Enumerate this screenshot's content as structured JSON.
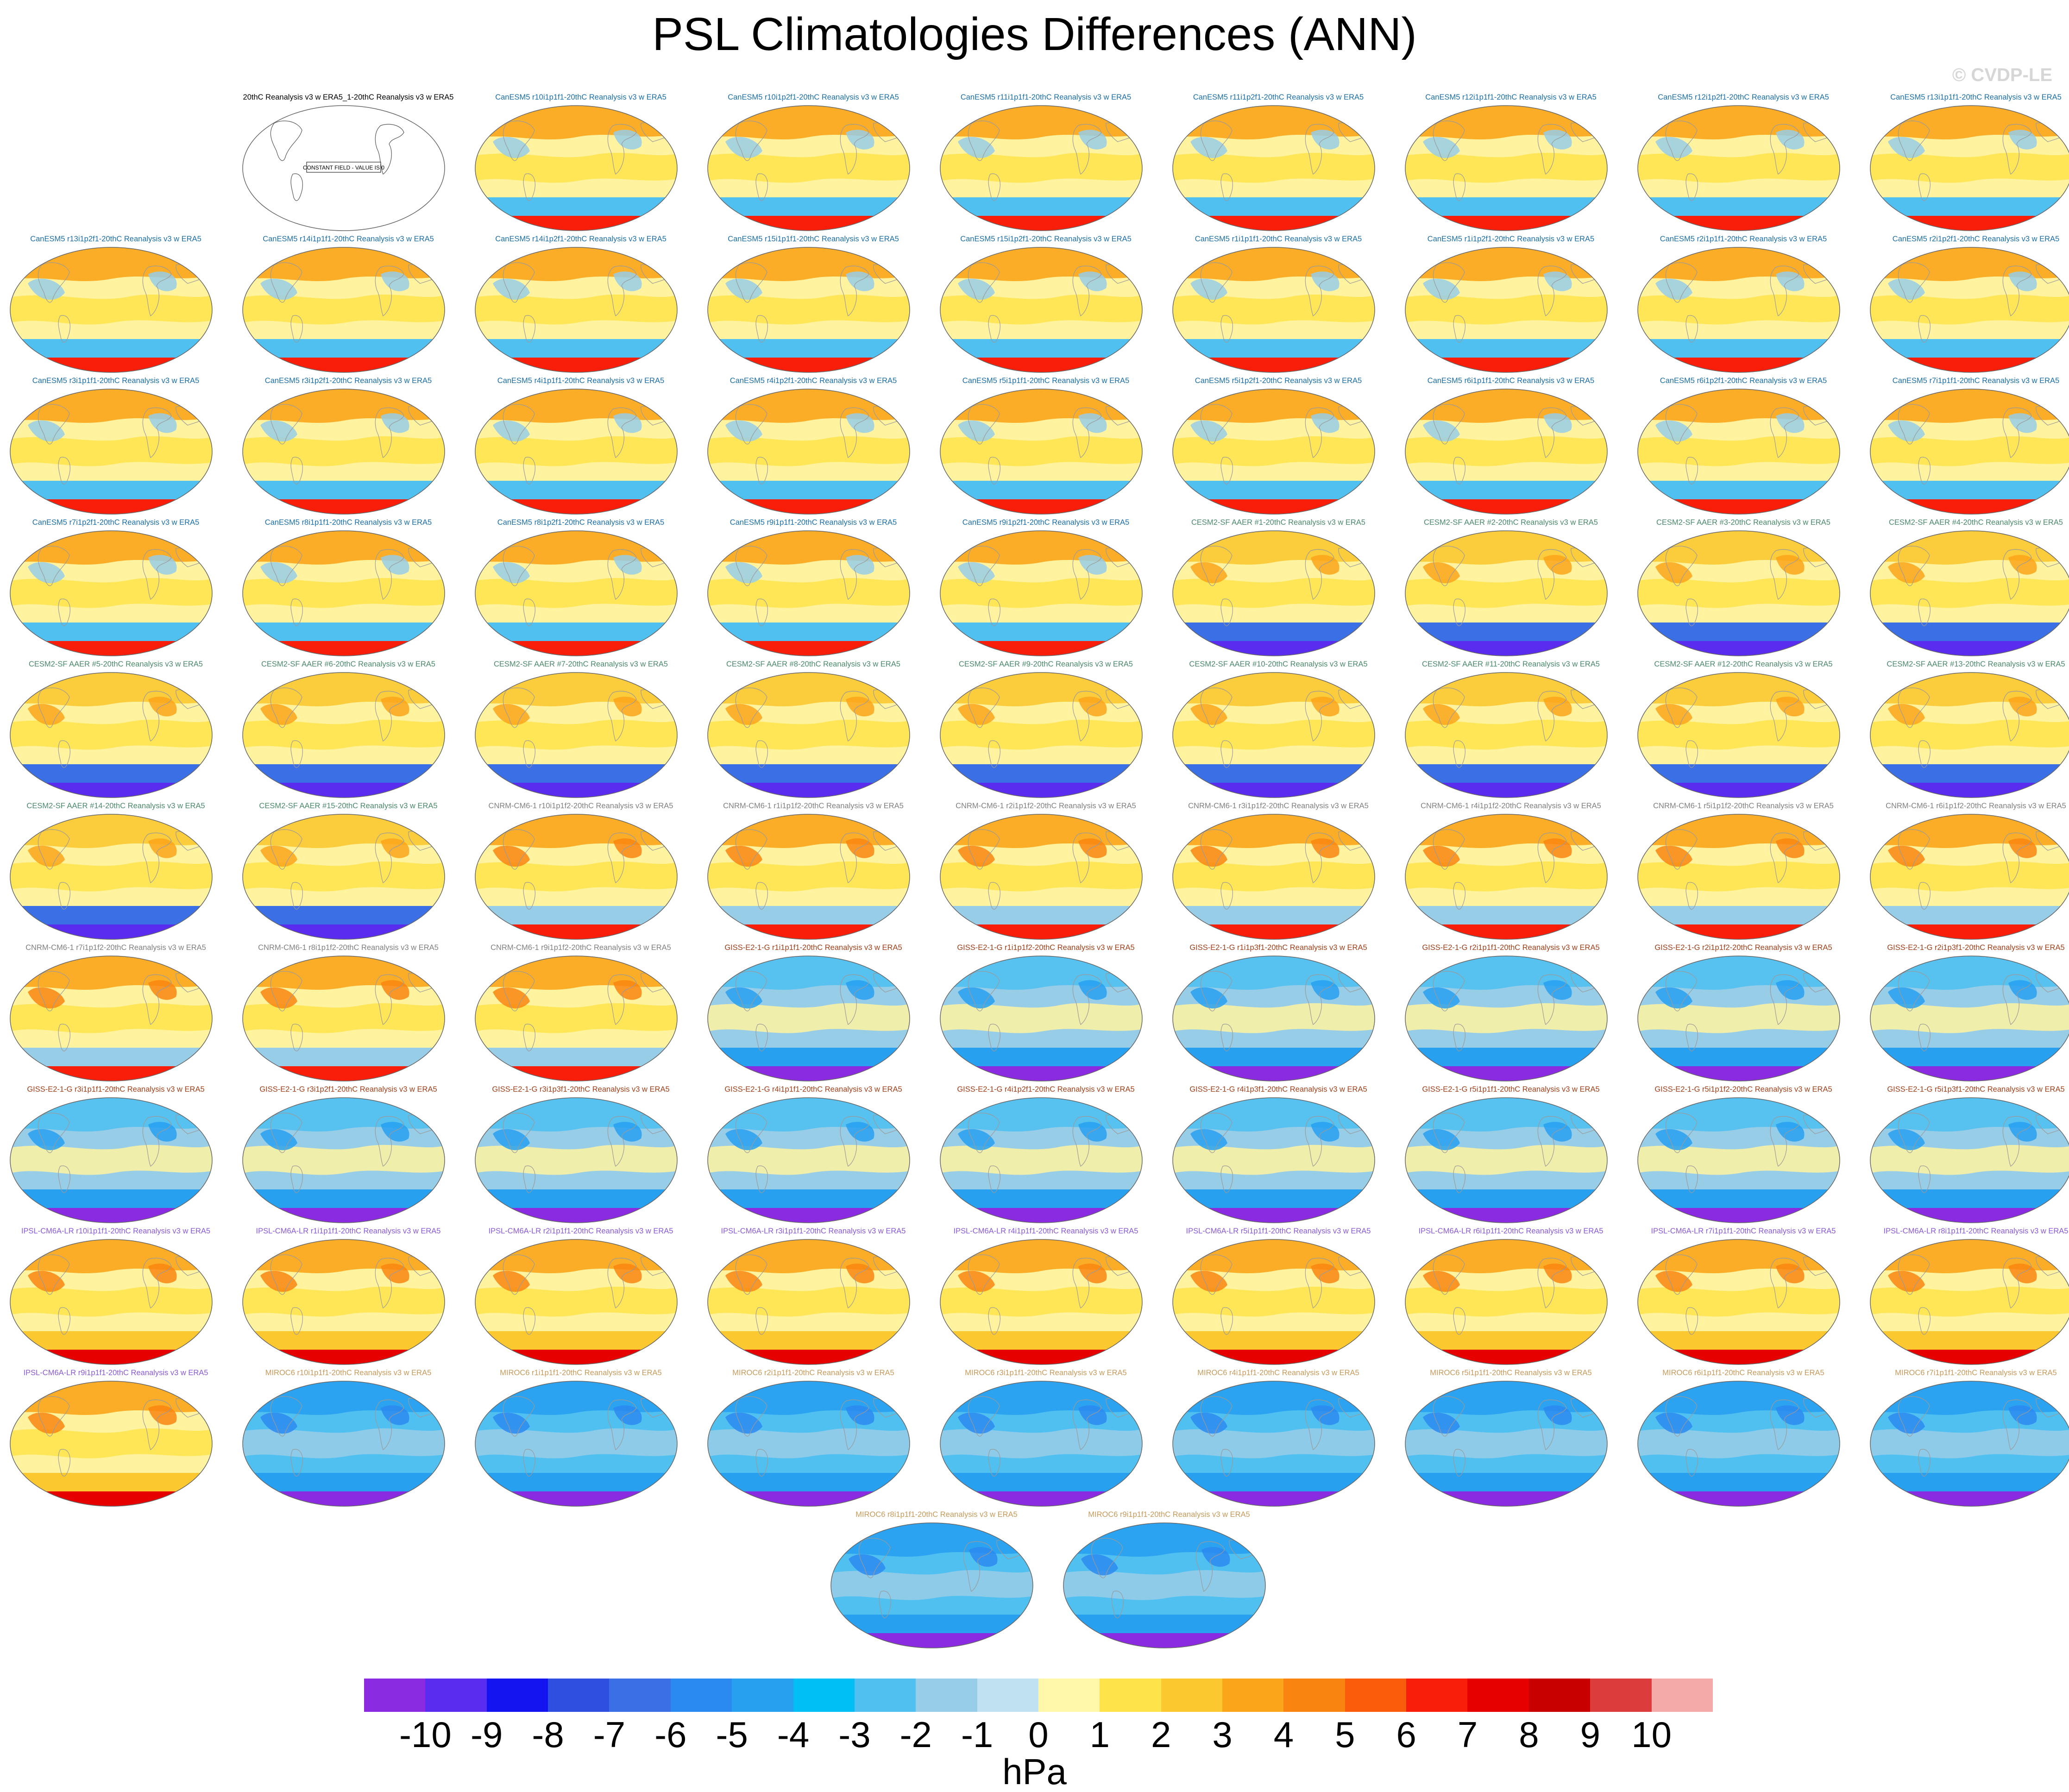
{
  "title": "PSL Climatologies Differences (ANN)",
  "watermark": "© CVDP-LE",
  "chart_data": {
    "type": "heatmap",
    "title": "PSL Climatologies Differences (ANN)",
    "description_kind": "grid of global map panels of sea level pressure climatology differences (model minus 20thC Reanalysis v3 w ERA5)",
    "colorbar": {
      "units": "hPa",
      "ticks": [
        "-10",
        "-9",
        "-8",
        "-7",
        "-6",
        "-5",
        "-4",
        "-3",
        "-2",
        "-1",
        "0",
        "1",
        "2",
        "3",
        "4",
        "5",
        "6",
        "7",
        "8",
        "9",
        "10"
      ],
      "tick_values": [
        -10,
        -9,
        -8,
        -7,
        -6,
        -5,
        -4,
        -3,
        -2,
        -1,
        0,
        1,
        2,
        3,
        4,
        5,
        6,
        7,
        8,
        9,
        10
      ],
      "colors": [
        "#8a2be2",
        "#5a2cf0",
        "#1414f0",
        "#2f4fe0",
        "#3b6fe6",
        "#2b8af0",
        "#27a0f0",
        "#00bff5",
        "#50c0f0",
        "#98cde8",
        "#bfe1f2",
        "#fff8a8",
        "#ffe34a",
        "#fbc830",
        "#fba51a",
        "#f98510",
        "#f95c0a",
        "#f81e0a",
        "#e60000",
        "#c80000",
        "#dc3c3c",
        "#f5aaaa"
      ]
    },
    "panels": [
      {
        "label": "20thC Reanalysis v3 w ERA5_1-20thC Reanalysis v3 w ERA5",
        "note": "CONSTANT FIELD - VALUE IS 0",
        "family": "obs"
      },
      {
        "label": "CanESM5 r10i1p1f1-20thC Reanalysis v3 w ERA5",
        "family": "CanESM5"
      },
      {
        "label": "CanESM5 r10i1p2f1-20thC Reanalysis v3 w ERA5",
        "family": "CanESM5"
      },
      {
        "label": "CanESM5 r11i1p1f1-20thC Reanalysis v3 w ERA5",
        "family": "CanESM5"
      },
      {
        "label": "CanESM5 r11i1p2f1-20thC Reanalysis v3 w ERA5",
        "family": "CanESM5"
      },
      {
        "label": "CanESM5 r12i1p1f1-20thC Reanalysis v3 w ERA5",
        "family": "CanESM5"
      },
      {
        "label": "CanESM5 r12i1p2f1-20thC Reanalysis v3 w ERA5",
        "family": "CanESM5"
      },
      {
        "label": "CanESM5 r13i1p1f1-20thC Reanalysis v3 w ERA5",
        "family": "CanESM5"
      },
      {
        "label": "CanESM5 r13i1p2f1-20thC Reanalysis v3 w ERA5",
        "family": "CanESM5"
      },
      {
        "label": "CanESM5 r14i1p1f1-20thC Reanalysis v3 w ERA5",
        "family": "CanESM5"
      },
      {
        "label": "CanESM5 r14i1p2f1-20thC Reanalysis v3 w ERA5",
        "family": "CanESM5"
      },
      {
        "label": "CanESM5 r15i1p1f1-20thC Reanalysis v3 w ERA5",
        "family": "CanESM5"
      },
      {
        "label": "CanESM5 r15i1p2f1-20thC Reanalysis v3 w ERA5",
        "family": "CanESM5"
      },
      {
        "label": "CanESM5 r1i1p1f1-20thC Reanalysis v3 w ERA5",
        "family": "CanESM5"
      },
      {
        "label": "CanESM5 r1i1p2f1-20thC Reanalysis v3 w ERA5",
        "family": "CanESM5"
      },
      {
        "label": "CanESM5 r2i1p1f1-20thC Reanalysis v3 w ERA5",
        "family": "CanESM5"
      },
      {
        "label": "CanESM5 r2i1p2f1-20thC Reanalysis v3 w ERA5",
        "family": "CanESM5"
      },
      {
        "label": "CanESM5 r3i1p1f1-20thC Reanalysis v3 w ERA5",
        "family": "CanESM5"
      },
      {
        "label": "CanESM5 r3i1p2f1-20thC Reanalysis v3 w ERA5",
        "family": "CanESM5"
      },
      {
        "label": "CanESM5 r4i1p1f1-20thC Reanalysis v3 w ERA5",
        "family": "CanESM5"
      },
      {
        "label": "CanESM5 r4i1p2f1-20thC Reanalysis v3 w ERA5",
        "family": "CanESM5"
      },
      {
        "label": "CanESM5 r5i1p1f1-20thC Reanalysis v3 w ERA5",
        "family": "CanESM5"
      },
      {
        "label": "CanESM5 r5i1p2f1-20thC Reanalysis v3 w ERA5",
        "family": "CanESM5"
      },
      {
        "label": "CanESM5 r6i1p1f1-20thC Reanalysis v3 w ERA5",
        "family": "CanESM5"
      },
      {
        "label": "CanESM5 r6i1p2f1-20thC Reanalysis v3 w ERA5",
        "family": "CanESM5"
      },
      {
        "label": "CanESM5 r7i1p1f1-20thC Reanalysis v3 w ERA5",
        "family": "CanESM5"
      },
      {
        "label": "CanESM5 r7i1p2f1-20thC Reanalysis v3 w ERA5",
        "family": "CanESM5"
      },
      {
        "label": "CanESM5 r8i1p1f1-20thC Reanalysis v3 w ERA5",
        "family": "CanESM5"
      },
      {
        "label": "CanESM5 r8i1p2f1-20thC Reanalysis v3 w ERA5",
        "family": "CanESM5"
      },
      {
        "label": "CanESM5 r9i1p1f1-20thC Reanalysis v3 w ERA5",
        "family": "CanESM5"
      },
      {
        "label": "CanESM5 r9i1p2f1-20thC Reanalysis v3 w ERA5",
        "family": "CanESM5"
      },
      {
        "label": "CESM2-SF AAER #1-20thC Reanalysis v3 w ERA5",
        "family": "CESM2-SF"
      },
      {
        "label": "CESM2-SF AAER #2-20thC Reanalysis v3 w ERA5",
        "family": "CESM2-SF"
      },
      {
        "label": "CESM2-SF AAER #3-20thC Reanalysis v3 w ERA5",
        "family": "CESM2-SF"
      },
      {
        "label": "CESM2-SF AAER #4-20thC Reanalysis v3 w ERA5",
        "family": "CESM2-SF"
      },
      {
        "label": "CESM2-SF AAER #5-20thC Reanalysis v3 w ERA5",
        "family": "CESM2-SF"
      },
      {
        "label": "CESM2-SF AAER #6-20thC Reanalysis v3 w ERA5",
        "family": "CESM2-SF"
      },
      {
        "label": "CESM2-SF AAER #7-20thC Reanalysis v3 w ERA5",
        "family": "CESM2-SF"
      },
      {
        "label": "CESM2-SF AAER #8-20thC Reanalysis v3 w ERA5",
        "family": "CESM2-SF"
      },
      {
        "label": "CESM2-SF AAER #9-20thC Reanalysis v3 w ERA5",
        "family": "CESM2-SF"
      },
      {
        "label": "CESM2-SF AAER #10-20thC Reanalysis v3 w ERA5",
        "family": "CESM2-SF"
      },
      {
        "label": "CESM2-SF AAER #11-20thC Reanalysis v3 w ERA5",
        "family": "CESM2-SF"
      },
      {
        "label": "CESM2-SF AAER #12-20thC Reanalysis v3 w ERA5",
        "family": "CESM2-SF"
      },
      {
        "label": "CESM2-SF AAER #13-20thC Reanalysis v3 w ERA5",
        "family": "CESM2-SF"
      },
      {
        "label": "CESM2-SF AAER #14-20thC Reanalysis v3 w ERA5",
        "family": "CESM2-SF"
      },
      {
        "label": "CESM2-SF AAER #15-20thC Reanalysis v3 w ERA5",
        "family": "CESM2-SF"
      },
      {
        "label": "CNRM-CM6-1 r10i1p1f2-20thC Reanalysis v3 w ERA5",
        "family": "CNRM"
      },
      {
        "label": "CNRM-CM6-1 r1i1p1f2-20thC Reanalysis v3 w ERA5",
        "family": "CNRM"
      },
      {
        "label": "CNRM-CM6-1 r2i1p1f2-20thC Reanalysis v3 w ERA5",
        "family": "CNRM"
      },
      {
        "label": "CNRM-CM6-1 r3i1p1f2-20thC Reanalysis v3 w ERA5",
        "family": "CNRM"
      },
      {
        "label": "CNRM-CM6-1 r4i1p1f2-20thC Reanalysis v3 w ERA5",
        "family": "CNRM"
      },
      {
        "label": "CNRM-CM6-1 r5i1p1f2-20thC Reanalysis v3 w ERA5",
        "family": "CNRM"
      },
      {
        "label": "CNRM-CM6-1 r6i1p1f2-20thC Reanalysis v3 w ERA5",
        "family": "CNRM"
      },
      {
        "label": "CNRM-CM6-1 r7i1p1f2-20thC Reanalysis v3 w ERA5",
        "family": "CNRM"
      },
      {
        "label": "CNRM-CM6-1 r8i1p1f2-20thC Reanalysis v3 w ERA5",
        "family": "CNRM"
      },
      {
        "label": "CNRM-CM6-1 r9i1p1f2-20thC Reanalysis v3 w ERA5",
        "family": "CNRM"
      },
      {
        "label": "GISS-E2-1-G r1i1p1f1-20thC Reanalysis v3 w ERA5",
        "family": "GISS"
      },
      {
        "label": "GISS-E2-1-G r1i1p1f2-20thC Reanalysis v3 w ERA5",
        "family": "GISS"
      },
      {
        "label": "GISS-E2-1-G r1i1p3f1-20thC Reanalysis v3 w ERA5",
        "family": "GISS"
      },
      {
        "label": "GISS-E2-1-G r2i1p1f1-20thC Reanalysis v3 w ERA5",
        "family": "GISS"
      },
      {
        "label": "GISS-E2-1-G r2i1p1f2-20thC Reanalysis v3 w ERA5",
        "family": "GISS"
      },
      {
        "label": "GISS-E2-1-G r2i1p3f1-20thC Reanalysis v3 w ERA5",
        "family": "GISS"
      },
      {
        "label": "GISS-E2-1-G r3i1p1f1-20thC Reanalysis v3 w ERA5",
        "family": "GISS"
      },
      {
        "label": "GISS-E2-1-G r3i1p2f1-20thC Reanalysis v3 w ERA5",
        "family": "GISS"
      },
      {
        "label": "GISS-E2-1-G r3i1p3f1-20thC Reanalysis v3 w ERA5",
        "family": "GISS"
      },
      {
        "label": "GISS-E2-1-G r4i1p1f1-20thC Reanalysis v3 w ERA5",
        "family": "GISS"
      },
      {
        "label": "GISS-E2-1-G r4i1p2f1-20thC Reanalysis v3 w ERA5",
        "family": "GISS"
      },
      {
        "label": "GISS-E2-1-G r4i1p3f1-20thC Reanalysis v3 w ERA5",
        "family": "GISS"
      },
      {
        "label": "GISS-E2-1-G r5i1p1f1-20thC Reanalysis v3 w ERA5",
        "family": "GISS"
      },
      {
        "label": "GISS-E2-1-G r5i1p1f2-20thC Reanalysis v3 w ERA5",
        "family": "GISS"
      },
      {
        "label": "GISS-E2-1-G r5i1p3f1-20thC Reanalysis v3 w ERA5",
        "family": "GISS"
      },
      {
        "label": "IPSL-CM6A-LR r10i1p1f1-20thC Reanalysis v3 w ERA5",
        "family": "IPSL"
      },
      {
        "label": "IPSL-CM6A-LR r1i1p1f1-20thC Reanalysis v3 w ERA5",
        "family": "IPSL"
      },
      {
        "label": "IPSL-CM6A-LR r2i1p1f1-20thC Reanalysis v3 w ERA5",
        "family": "IPSL"
      },
      {
        "label": "IPSL-CM6A-LR r3i1p1f1-20thC Reanalysis v3 w ERA5",
        "family": "IPSL"
      },
      {
        "label": "IPSL-CM6A-LR r4i1p1f1-20thC Reanalysis v3 w ERA5",
        "family": "IPSL"
      },
      {
        "label": "IPSL-CM6A-LR r5i1p1f1-20thC Reanalysis v3 w ERA5",
        "family": "IPSL"
      },
      {
        "label": "IPSL-CM6A-LR r6i1p1f1-20thC Reanalysis v3 w ERA5",
        "family": "IPSL"
      },
      {
        "label": "IPSL-CM6A-LR r7i1p1f1-20thC Reanalysis v3 w ERA5",
        "family": "IPSL"
      },
      {
        "label": "IPSL-CM6A-LR r8i1p1f1-20thC Reanalysis v3 w ERA5",
        "family": "IPSL"
      },
      {
        "label": "IPSL-CM6A-LR r9i1p1f1-20thC Reanalysis v3 w ERA5",
        "family": "IPSL"
      },
      {
        "label": "MIROC6 r10i1p1f1-20thC Reanalysis v3 w ERA5",
        "family": "MIROC6"
      },
      {
        "label": "MIROC6 r1i1p1f1-20thC Reanalysis v3 w ERA5",
        "family": "MIROC6"
      },
      {
        "label": "MIROC6 r2i1p1f1-20thC Reanalysis v3 w ERA5",
        "family": "MIROC6"
      },
      {
        "label": "MIROC6 r3i1p1f1-20thC Reanalysis v3 w ERA5",
        "family": "MIROC6"
      },
      {
        "label": "MIROC6 r4i1p1f1-20thC Reanalysis v3 w ERA5",
        "family": "MIROC6"
      },
      {
        "label": "MIROC6 r5i1p1f1-20thC Reanalysis v3 w ERA5",
        "family": "MIROC6"
      },
      {
        "label": "MIROC6 r6i1p1f1-20thC Reanalysis v3 w ERA5",
        "family": "MIROC6"
      },
      {
        "label": "MIROC6 r7i1p1f1-20thC Reanalysis v3 w ERA5",
        "family": "MIROC6"
      },
      {
        "label": "MIROC6 r8i1p1f1-20thC Reanalysis v3 w ERA5",
        "family": "MIROC6"
      },
      {
        "label": "MIROC6 r9i1p1f1-20thC Reanalysis v3 w ERA5",
        "family": "MIROC6"
      }
    ],
    "family_styles": {
      "obs": {
        "title_color": "#000000",
        "ocean": "#ffffff",
        "tropics": "#ffffff",
        "north": "#ffffff",
        "south_band": "#ffffff",
        "south_edge": "#ffffff",
        "accent": "#ffffff"
      },
      "CanESM5": {
        "title_color": "#1b6fa8",
        "ocean": "#fff3a0",
        "tropics": "#ffe34a",
        "north": "#fba51a",
        "south_band": "#50c0f0",
        "south_edge": "#f81e0a",
        "accent": "#98cde8"
      },
      "CESM2-SF": {
        "title_color": "#4a8a6a",
        "ocean": "#fff3a0",
        "tropics": "#ffe34a",
        "north": "#fbc830",
        "south_band": "#3b6fe6",
        "south_edge": "#5a2cf0",
        "accent": "#fba51a"
      },
      "CNRM": {
        "title_color": "#808080",
        "ocean": "#fff3a0",
        "tropics": "#ffe34a",
        "north": "#fba51a",
        "south_band": "#98cde8",
        "south_edge": "#f81e0a",
        "accent": "#f98510"
      },
      "GISS": {
        "title_color": "#a0401a",
        "ocean": "#98cde8",
        "tropics": "#fff3a0",
        "north": "#50c0f0",
        "south_band": "#27a0f0",
        "south_edge": "#8a2be2",
        "accent": "#27a0f0"
      },
      "IPSL": {
        "title_color": "#8a5ad8",
        "ocean": "#fff3a0",
        "tropics": "#ffe34a",
        "north": "#fba51a",
        "south_band": "#fbc830",
        "south_edge": "#e60000",
        "accent": "#f98510"
      },
      "MIROC6": {
        "title_color": "#c89a5a",
        "ocean": "#50c0f0",
        "tropics": "#98cde8",
        "north": "#27a0f0",
        "south_band": "#27a0f0",
        "south_edge": "#8a2be2",
        "accent": "#2b8af0"
      }
    }
  }
}
